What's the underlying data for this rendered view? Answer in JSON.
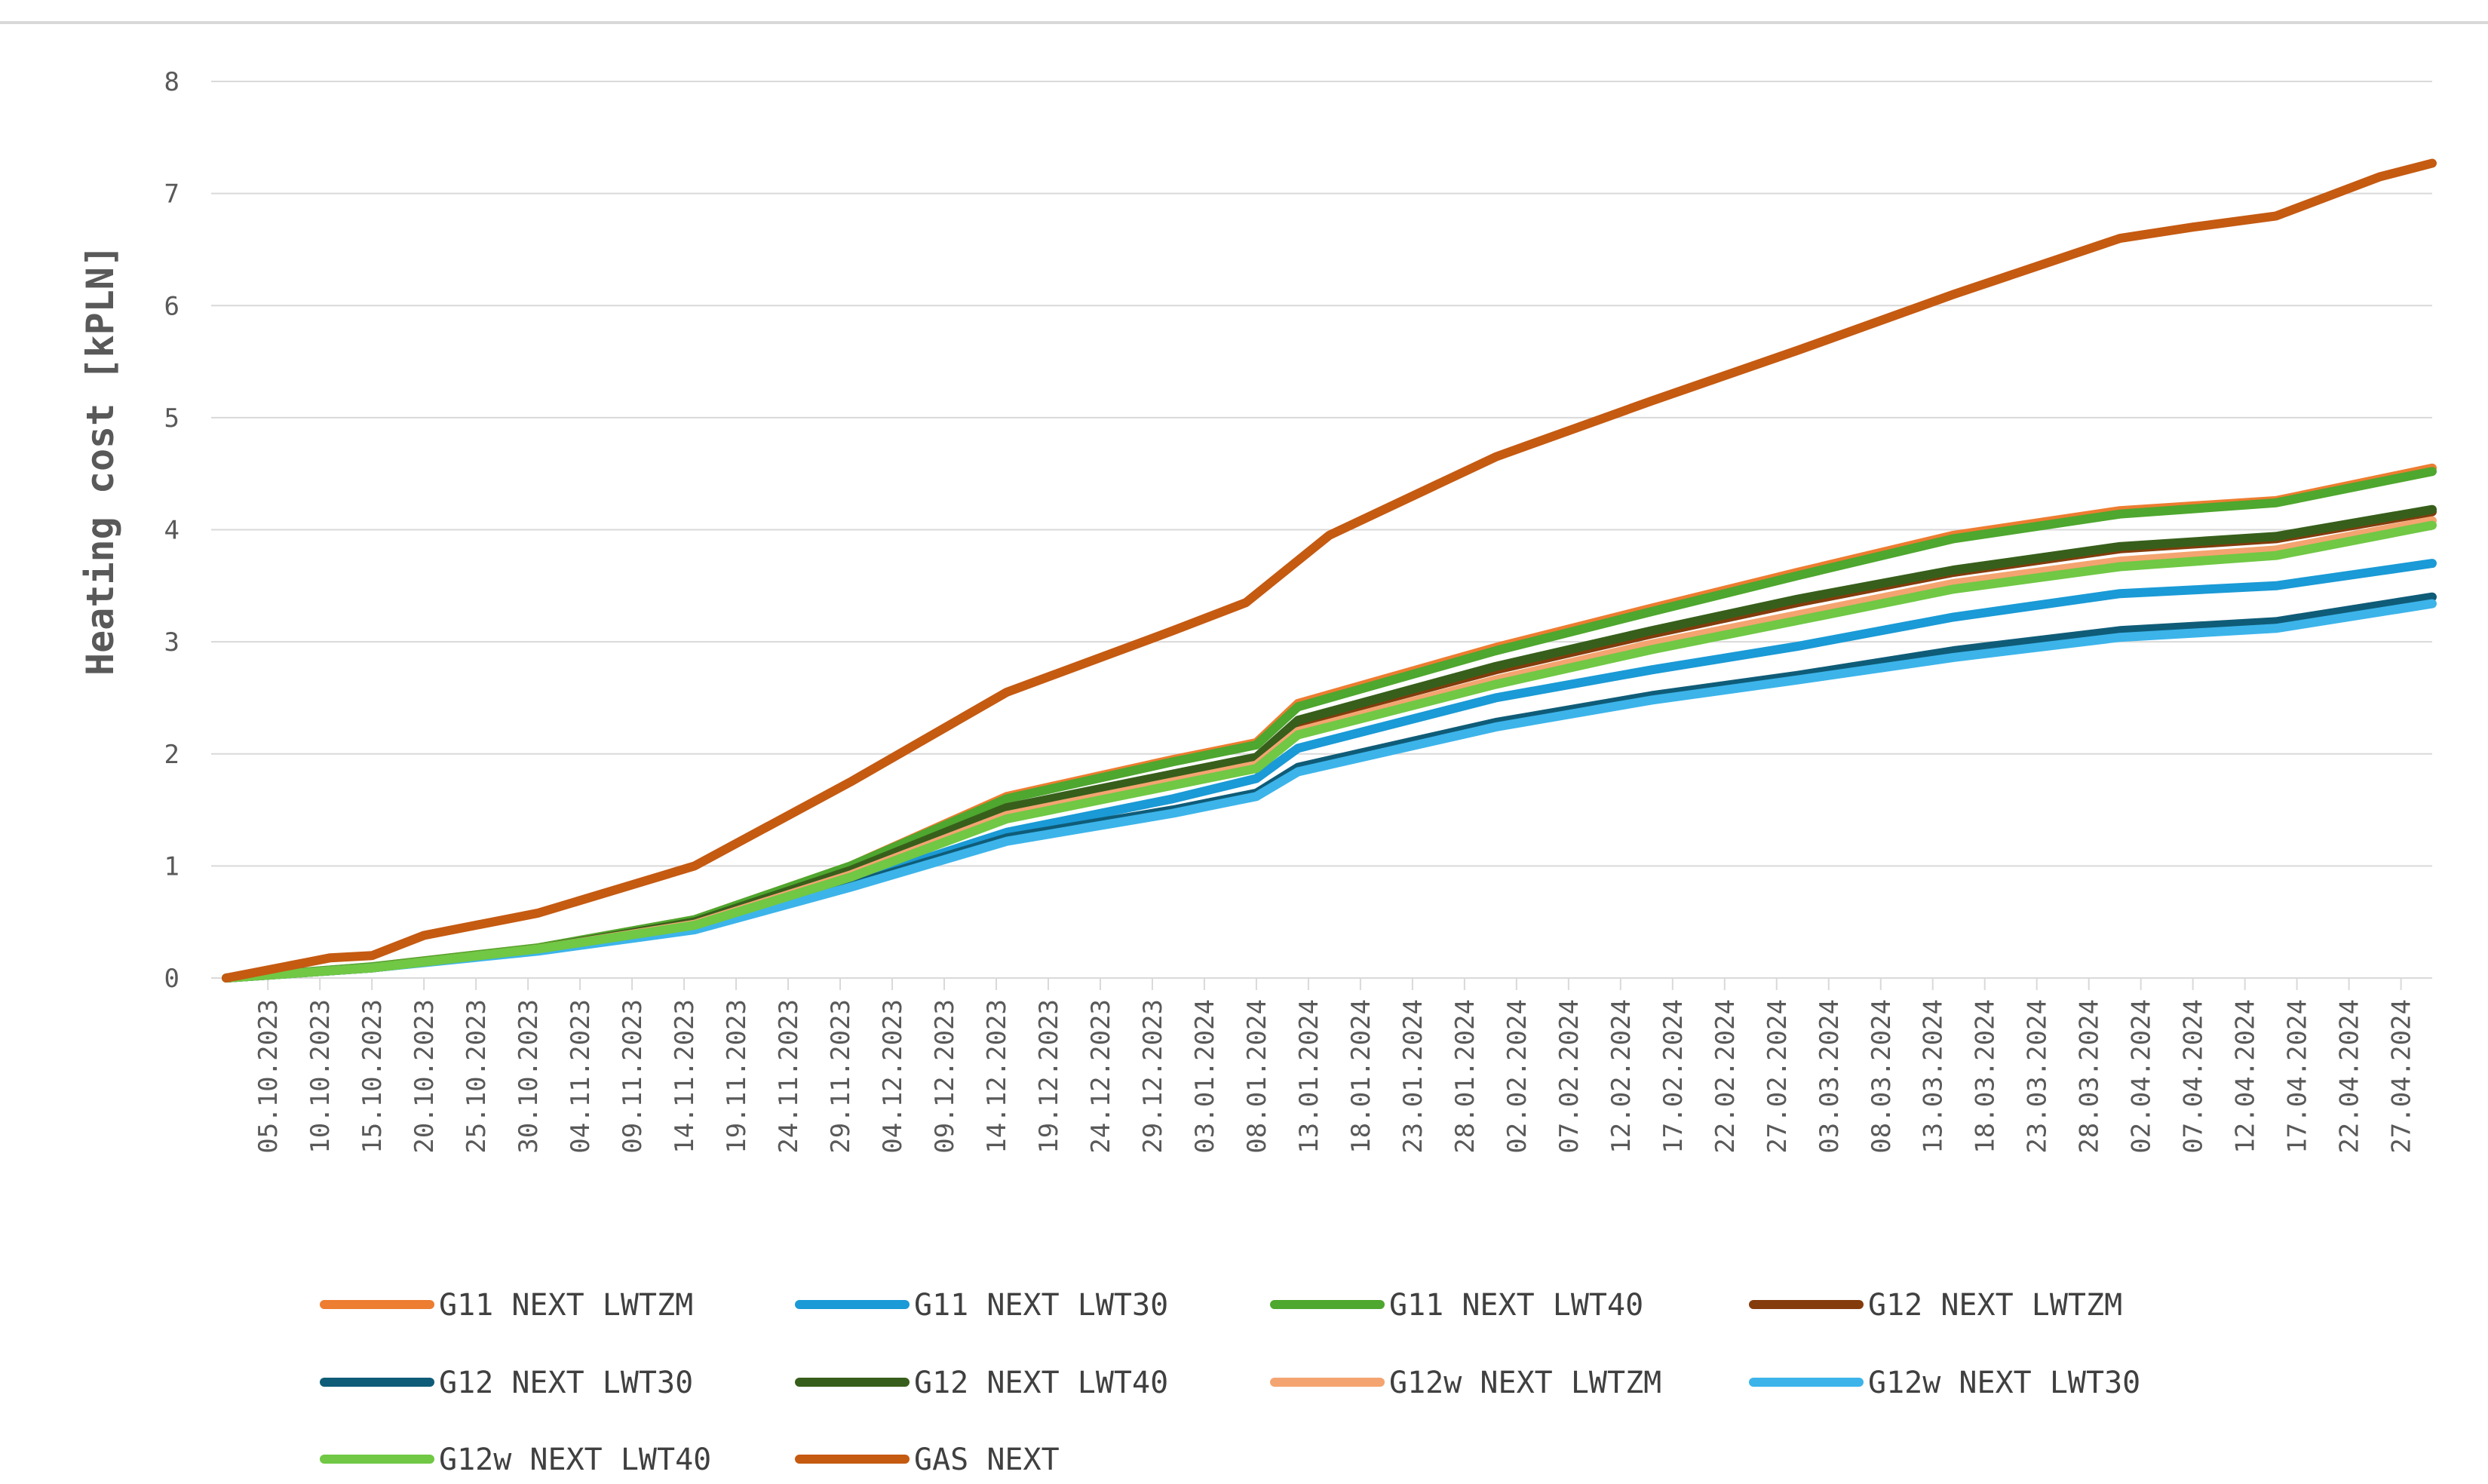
{
  "chart_data": {
    "type": "line",
    "title": "",
    "xlabel": "",
    "ylabel": "Heating cost [kPLN]",
    "ylim": [
      0,
      8
    ],
    "yticks": [
      "0",
      "1",
      "2",
      "3",
      "4",
      "5",
      "6",
      "7",
      "8"
    ],
    "grid": true,
    "legend_position": "bottom",
    "x_start": "2023-10-01",
    "x_end": "2024-04-30",
    "x_tick_labels": [
      "05.10.2023",
      "10.10.2023",
      "15.10.2023",
      "20.10.2023",
      "25.10.2023",
      "30.10.2023",
      "04.11.2023",
      "09.11.2023",
      "14.11.2023",
      "19.11.2023",
      "24.11.2023",
      "29.11.2023",
      "04.12.2023",
      "09.12.2023",
      "14.12.2023",
      "19.12.2023",
      "24.12.2023",
      "29.12.2023",
      "03.01.2024",
      "08.01.2024",
      "13.01.2024",
      "18.01.2024",
      "23.01.2024",
      "28.01.2024",
      "02.02.2024",
      "07.02.2024",
      "12.02.2024",
      "17.02.2024",
      "22.02.2024",
      "27.02.2024",
      "03.03.2024",
      "08.03.2024",
      "13.03.2024",
      "18.03.2024",
      "23.03.2024",
      "28.03.2024",
      "02.04.2024",
      "07.04.2024",
      "12.04.2024",
      "17.04.2024",
      "22.04.2024",
      "27.04.2024"
    ],
    "series": [
      {
        "name": "G11 NEXT LWTZM",
        "color": "#ed7d31",
        "x": [
          "2023-10-01",
          "2023-10-15",
          "2023-10-31",
          "2023-11-15",
          "2023-11-30",
          "2023-12-15",
          "2023-12-31",
          "2024-01-08",
          "2024-01-12",
          "2024-01-31",
          "2024-02-15",
          "2024-02-29",
          "2024-03-15",
          "2024-03-31",
          "2024-04-15",
          "2024-04-30"
        ],
        "y": [
          0,
          0.1,
          0.27,
          0.52,
          1.0,
          1.62,
          1.95,
          2.1,
          2.45,
          2.95,
          3.3,
          3.62,
          3.95,
          4.17,
          4.26,
          4.55
        ]
      },
      {
        "name": "G11 NEXT LWT30",
        "color": "#1a9ad6",
        "x": [
          "2023-10-01",
          "2023-10-15",
          "2023-10-31",
          "2023-11-15",
          "2023-11-30",
          "2023-12-15",
          "2023-12-31",
          "2024-01-08",
          "2024-01-12",
          "2024-01-31",
          "2024-02-15",
          "2024-02-29",
          "2024-03-15",
          "2024-03-31",
          "2024-04-15",
          "2024-04-30"
        ],
        "y": [
          0,
          0.09,
          0.25,
          0.45,
          0.85,
          1.3,
          1.6,
          1.78,
          2.05,
          2.5,
          2.75,
          2.96,
          3.22,
          3.43,
          3.5,
          3.7
        ]
      },
      {
        "name": "G11 NEXT LWT40",
        "color": "#4ea72e",
        "x": [
          "2023-10-01",
          "2023-10-15",
          "2023-10-31",
          "2023-11-15",
          "2023-11-30",
          "2023-12-15",
          "2023-12-31",
          "2024-01-08",
          "2024-01-12",
          "2024-01-31",
          "2024-02-15",
          "2024-02-29",
          "2024-03-15",
          "2024-03-31",
          "2024-04-15",
          "2024-04-30"
        ],
        "y": [
          0,
          0.1,
          0.27,
          0.52,
          1.0,
          1.6,
          1.93,
          2.08,
          2.42,
          2.92,
          3.27,
          3.59,
          3.92,
          4.14,
          4.24,
          4.52
        ]
      },
      {
        "name": "G12 NEXT LWTZM",
        "color": "#843c0c",
        "x": [
          "2023-10-01",
          "2023-10-15",
          "2023-10-31",
          "2023-11-15",
          "2023-11-30",
          "2023-12-15",
          "2023-12-31",
          "2024-01-08",
          "2024-01-12",
          "2024-01-31",
          "2024-02-15",
          "2024-02-29",
          "2024-03-15",
          "2024-03-31",
          "2024-04-15",
          "2024-04-30"
        ],
        "y": [
          0,
          0.09,
          0.26,
          0.5,
          0.95,
          1.5,
          1.8,
          1.95,
          2.28,
          2.75,
          3.07,
          3.35,
          3.62,
          3.83,
          3.92,
          4.16
        ]
      },
      {
        "name": "G12 NEXT LWT30",
        "color": "#0f5c78",
        "x": [
          "2023-10-01",
          "2023-10-15",
          "2023-10-31",
          "2023-11-15",
          "2023-11-30",
          "2023-12-15",
          "2023-12-31",
          "2024-01-08",
          "2024-01-12",
          "2024-01-31",
          "2024-02-15",
          "2024-02-29",
          "2024-03-15",
          "2024-03-31",
          "2024-04-15",
          "2024-04-30"
        ],
        "y": [
          0,
          0.09,
          0.25,
          0.44,
          0.83,
          1.25,
          1.5,
          1.65,
          1.88,
          2.28,
          2.52,
          2.7,
          2.92,
          3.1,
          3.18,
          3.4
        ]
      },
      {
        "name": "G12 NEXT LWT40",
        "color": "#375f1b",
        "x": [
          "2023-10-01",
          "2023-10-15",
          "2023-10-31",
          "2023-11-15",
          "2023-11-30",
          "2023-12-15",
          "2023-12-31",
          "2024-01-08",
          "2024-01-12",
          "2024-01-31",
          "2024-02-15",
          "2024-02-29",
          "2024-03-15",
          "2024-03-31",
          "2024-04-15",
          "2024-04-30"
        ],
        "y": [
          0,
          0.09,
          0.26,
          0.5,
          0.96,
          1.52,
          1.82,
          1.97,
          2.3,
          2.78,
          3.1,
          3.38,
          3.64,
          3.85,
          3.94,
          4.18
        ]
      },
      {
        "name": "G12w NEXT LWTZM",
        "color": "#f4a470",
        "x": [
          "2023-10-01",
          "2023-10-15",
          "2023-10-31",
          "2023-11-15",
          "2023-11-30",
          "2023-12-15",
          "2023-12-31",
          "2024-01-08",
          "2024-01-12",
          "2024-01-31",
          "2024-02-15",
          "2024-02-29",
          "2024-03-15",
          "2024-03-31",
          "2024-04-15",
          "2024-04-30"
        ],
        "y": [
          0,
          0.09,
          0.26,
          0.48,
          0.92,
          1.45,
          1.75,
          1.9,
          2.2,
          2.66,
          2.98,
          3.24,
          3.52,
          3.72,
          3.82,
          4.08
        ]
      },
      {
        "name": "G12w NEXT LWT30",
        "color": "#3cb4ea",
        "x": [
          "2023-10-01",
          "2023-10-15",
          "2023-10-31",
          "2023-11-15",
          "2023-11-30",
          "2023-12-15",
          "2023-12-31",
          "2024-01-08",
          "2024-01-12",
          "2024-01-31",
          "2024-02-15",
          "2024-02-29",
          "2024-03-15",
          "2024-03-31",
          "2024-04-15",
          "2024-04-30"
        ],
        "y": [
          0,
          0.09,
          0.24,
          0.43,
          0.81,
          1.22,
          1.47,
          1.62,
          1.84,
          2.24,
          2.48,
          2.66,
          2.86,
          3.04,
          3.12,
          3.34
        ]
      },
      {
        "name": "G12w NEXT LWT40",
        "color": "#70c844",
        "x": [
          "2023-10-01",
          "2023-10-15",
          "2023-10-31",
          "2023-11-15",
          "2023-11-30",
          "2023-12-15",
          "2023-12-31",
          "2024-01-08",
          "2024-01-12",
          "2024-01-31",
          "2024-02-15",
          "2024-02-29",
          "2024-03-15",
          "2024-03-31",
          "2024-04-15",
          "2024-04-30"
        ],
        "y": [
          0,
          0.09,
          0.26,
          0.47,
          0.9,
          1.42,
          1.72,
          1.87,
          2.17,
          2.62,
          2.93,
          3.19,
          3.47,
          3.67,
          3.77,
          4.04
        ]
      },
      {
        "name": "GAS NEXT",
        "color": "#c55a11",
        "x": [
          "2023-10-01",
          "2023-10-11",
          "2023-10-15",
          "2023-10-20",
          "2023-10-31",
          "2023-11-15",
          "2023-11-30",
          "2023-12-15",
          "2023-12-31",
          "2024-01-07",
          "2024-01-15",
          "2024-01-31",
          "2024-02-15",
          "2024-02-29",
          "2024-03-15",
          "2024-03-31",
          "2024-04-07",
          "2024-04-15",
          "2024-04-25",
          "2024-04-30"
        ],
        "y": [
          0,
          0.18,
          0.2,
          0.38,
          0.58,
          1.0,
          1.75,
          2.55,
          3.1,
          3.35,
          3.95,
          4.65,
          5.15,
          5.6,
          6.1,
          6.6,
          6.7,
          6.8,
          7.15,
          7.27
        ]
      }
    ]
  }
}
